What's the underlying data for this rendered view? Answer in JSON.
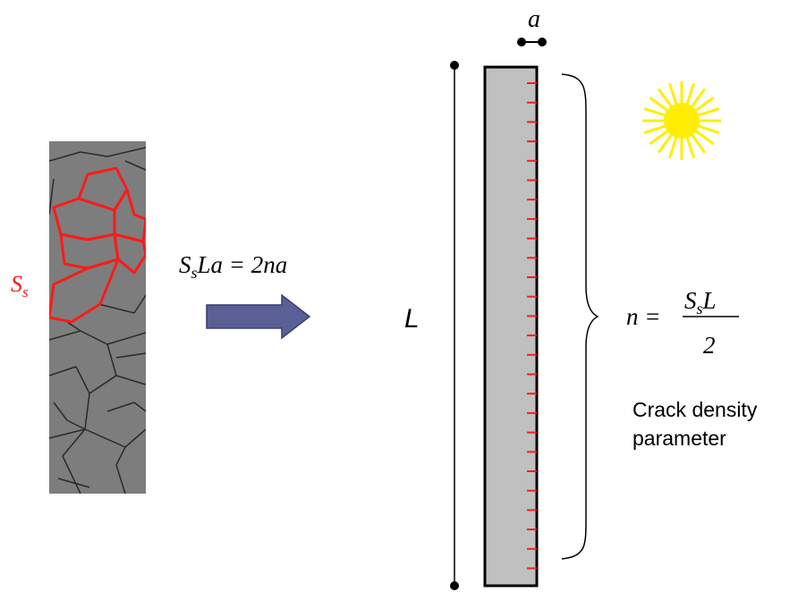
{
  "micrograph_label": {
    "main": "S",
    "sub": "s"
  },
  "equation": {
    "main": "S",
    "sub": "s",
    "rest": "La = 2na"
  },
  "length_label": "L",
  "width_label": "a",
  "n_equation": {
    "lhs": "n =",
    "num_main": "S",
    "num_sub": "s",
    "num_rest": "L",
    "den": "2"
  },
  "caption": {
    "line1": "Crack density",
    "line2": "parameter"
  }
}
